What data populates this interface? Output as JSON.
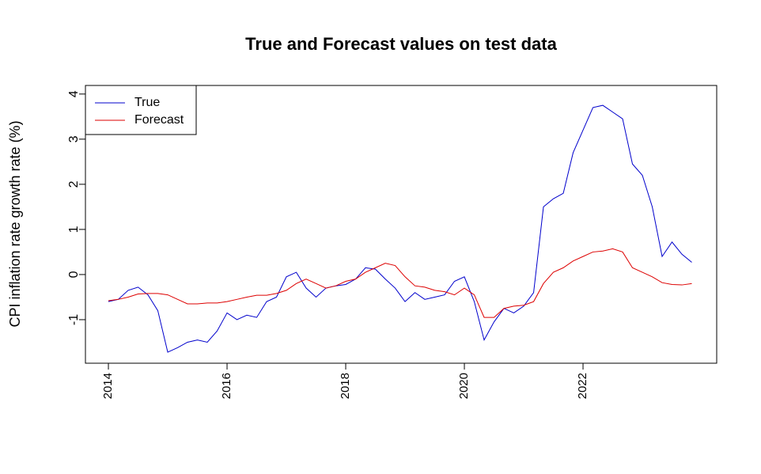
{
  "chart_data": {
    "type": "line",
    "title": "True and Forecast values on test data",
    "y_label": "CPI inflation rate growth rate (%)",
    "x": [
      2014,
      2014.167,
      2014.333,
      2014.5,
      2014.667,
      2014.833,
      2015,
      2015.167,
      2015.333,
      2015.5,
      2015.667,
      2015.833,
      2016,
      2016.167,
      2016.333,
      2016.5,
      2016.667,
      2016.833,
      2017,
      2017.167,
      2017.333,
      2017.5,
      2017.667,
      2017.833,
      2018,
      2018.167,
      2018.333,
      2018.5,
      2018.667,
      2018.833,
      2019,
      2019.167,
      2019.333,
      2019.5,
      2019.667,
      2019.833,
      2020,
      2020.167,
      2020.333,
      2020.5,
      2020.667,
      2020.833,
      2021,
      2021.167,
      2021.333,
      2021.5,
      2021.667,
      2021.833,
      2022,
      2022.167,
      2022.333,
      2022.5,
      2022.667,
      2022.833,
      2023,
      2023.167,
      2023.333,
      2023.5,
      2023.667,
      2023.833
    ],
    "series": [
      {
        "name": "True",
        "color": "#0000cc",
        "values": [
          -0.6,
          -0.55,
          -0.35,
          -0.28,
          -0.45,
          -0.8,
          -1.72,
          -1.62,
          -1.5,
          -1.45,
          -1.5,
          -1.25,
          -0.85,
          -1.0,
          -0.9,
          -0.95,
          -0.6,
          -0.5,
          -0.05,
          0.05,
          -0.3,
          -0.5,
          -0.3,
          -0.25,
          -0.22,
          -0.1,
          0.15,
          0.12,
          -0.1,
          -0.3,
          -0.6,
          -0.4,
          -0.55,
          -0.5,
          -0.45,
          -0.15,
          -0.05,
          -0.6,
          -1.45,
          -1.05,
          -0.75,
          -0.85,
          -0.7,
          -0.4,
          1.5,
          1.68,
          1.8,
          2.7,
          3.2,
          3.7,
          3.75,
          3.6,
          3.45,
          2.45,
          2.2,
          1.5,
          0.4,
          0.72,
          0.45,
          0.27
        ]
      },
      {
        "name": "Forecast",
        "color": "#dd0000",
        "values": [
          -0.58,
          -0.55,
          -0.5,
          -0.43,
          -0.42,
          -0.42,
          -0.45,
          -0.55,
          -0.65,
          -0.65,
          -0.63,
          -0.63,
          -0.6,
          -0.55,
          -0.5,
          -0.46,
          -0.46,
          -0.42,
          -0.35,
          -0.2,
          -0.1,
          -0.2,
          -0.3,
          -0.25,
          -0.15,
          -0.1,
          0.05,
          0.15,
          0.25,
          0.2,
          -0.05,
          -0.25,
          -0.28,
          -0.35,
          -0.38,
          -0.45,
          -0.3,
          -0.45,
          -0.95,
          -0.95,
          -0.75,
          -0.7,
          -0.68,
          -0.6,
          -0.2,
          0.05,
          0.15,
          0.3,
          0.4,
          0.5,
          0.52,
          0.57,
          0.5,
          0.15,
          0.05,
          -0.05,
          -0.18,
          -0.22,
          -0.23,
          -0.2
        ]
      }
    ],
    "xlim": [
      2013.613,
      2024.253
    ],
    "xticks": [
      2014,
      2016,
      2018,
      2020,
      2022
    ],
    "ylim": [
      -1.965,
      4.19
    ],
    "yticks": [
      -1,
      0,
      1,
      2,
      3,
      4
    ],
    "legend": "top-left"
  }
}
